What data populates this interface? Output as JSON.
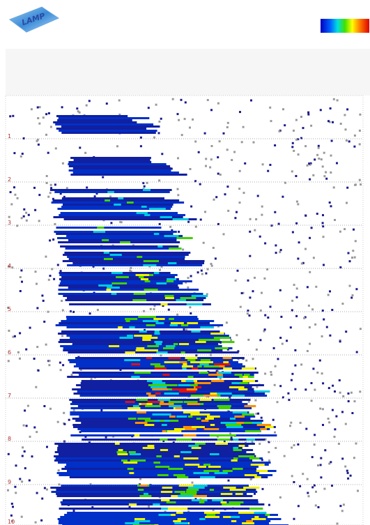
{
  "logo": "LAMP",
  "rows": {
    "labels": [
      "1",
      "2",
      "3",
      "4",
      "5",
      "6",
      "7",
      "8",
      "9",
      "10"
    ]
  }
}
